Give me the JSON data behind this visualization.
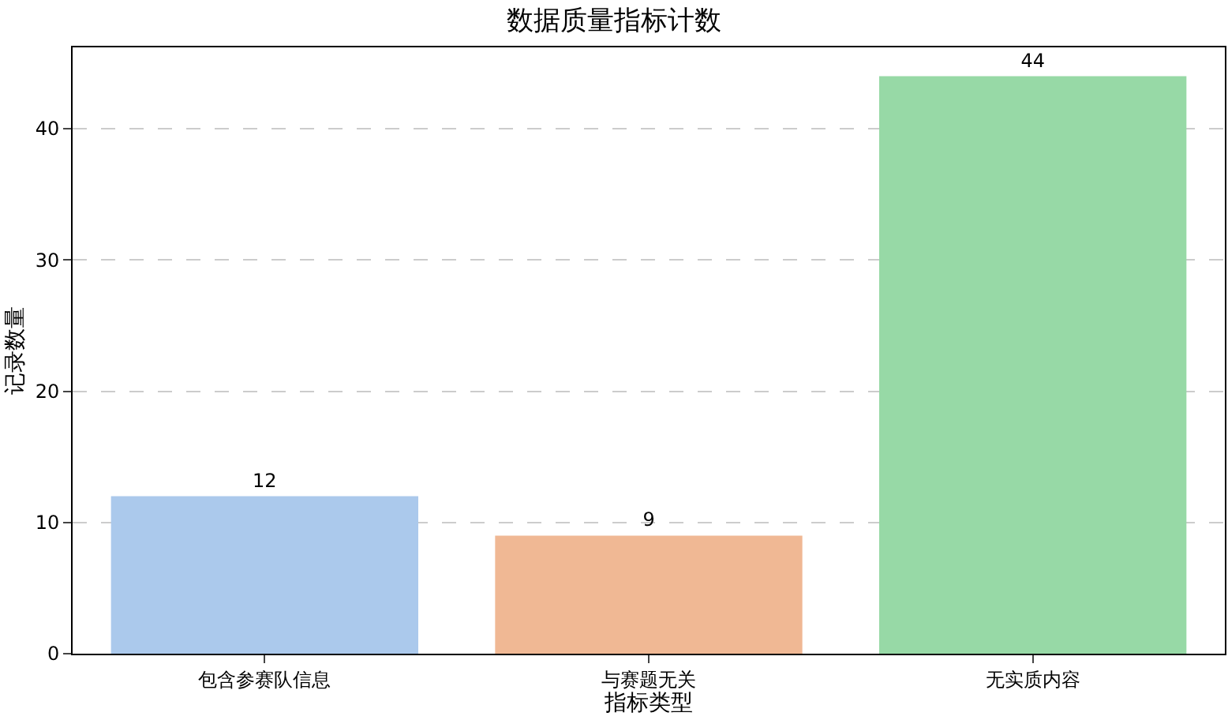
{
  "chart_data": {
    "type": "bar",
    "title": "数据质量指标计数",
    "xlabel": "指标类型",
    "ylabel": "记录数量",
    "categories": [
      "包含参赛队信息",
      "与赛题无关",
      "无实质内容"
    ],
    "values": [
      12,
      9,
      44
    ],
    "colors": [
      "#abc9ec",
      "#f0b894",
      "#97d9a6"
    ],
    "ylim": [
      0,
      46.2
    ],
    "yticks": [
      0,
      10,
      20,
      30,
      40
    ],
    "grid": "y",
    "data_labels": true
  }
}
